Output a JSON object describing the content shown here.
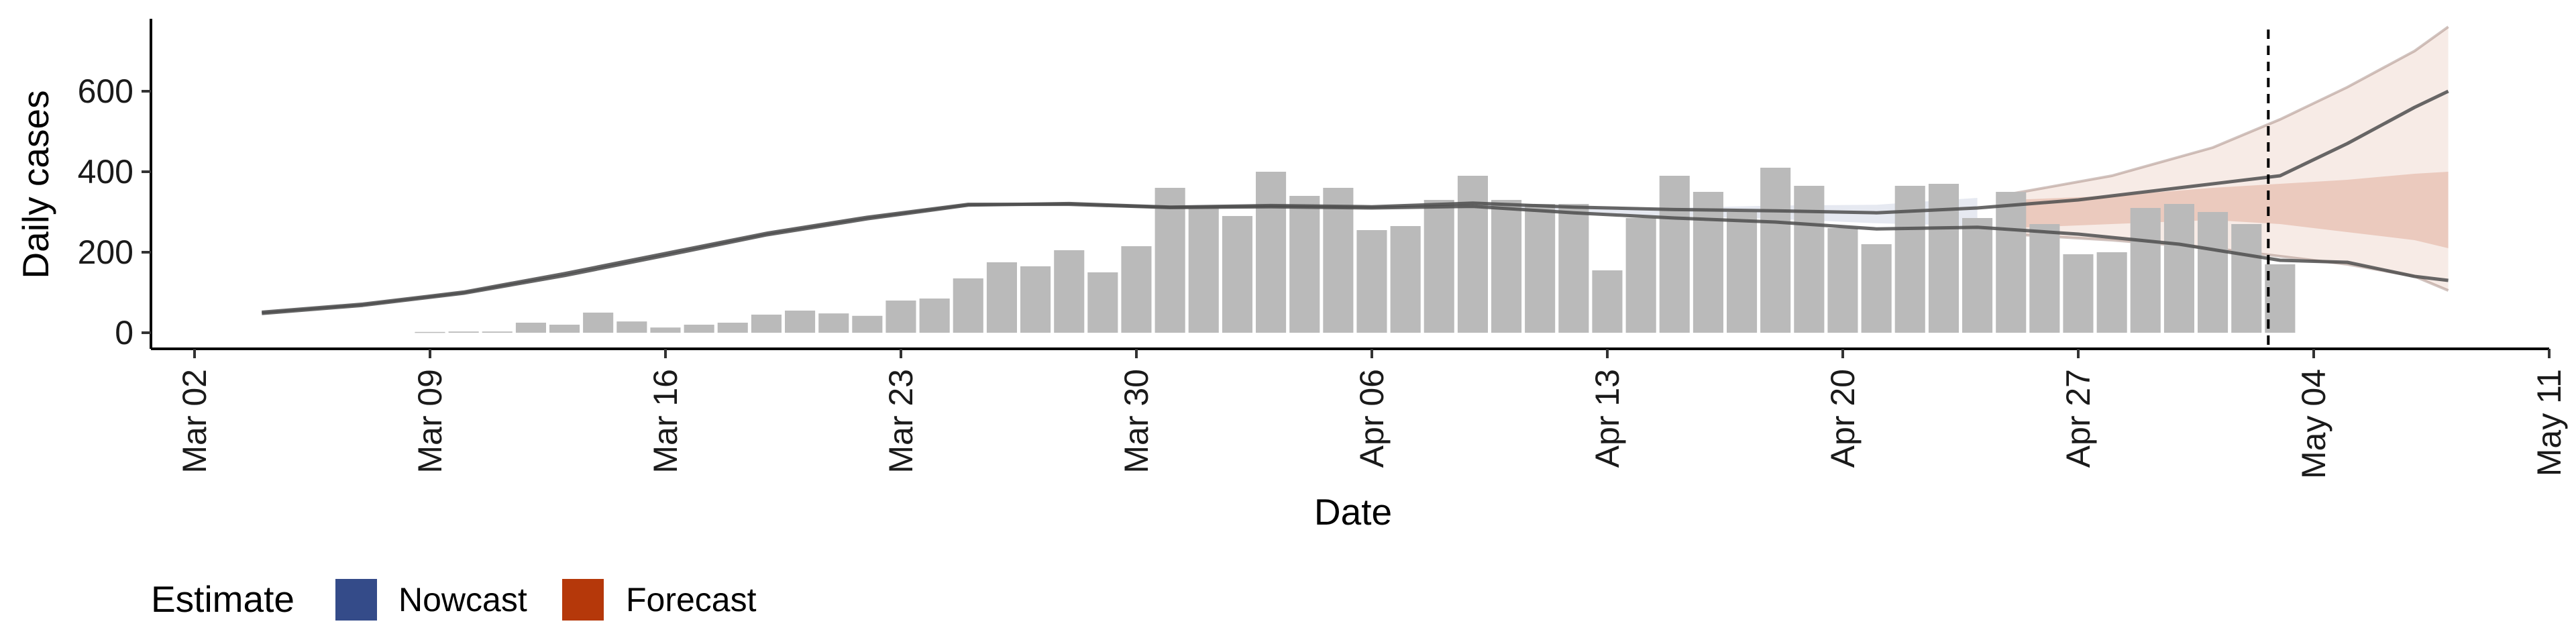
{
  "chart_data": {
    "type": "bar",
    "title": "",
    "xlabel": "Date",
    "ylabel": "Daily cases",
    "x_range": [
      "2020-03-02",
      "2020-05-11"
    ],
    "ylim": [
      -40,
      780
    ],
    "y_ticks": [
      0,
      200,
      400,
      600
    ],
    "x_ticks": [
      {
        "date": "2020-03-02",
        "label": "Mar 02"
      },
      {
        "date": "2020-03-09",
        "label": "Mar 09"
      },
      {
        "date": "2020-03-16",
        "label": "Mar 16"
      },
      {
        "date": "2020-03-23",
        "label": "Mar 23"
      },
      {
        "date": "2020-03-30",
        "label": "Mar 30"
      },
      {
        "date": "2020-04-06",
        "label": "Apr 06"
      },
      {
        "date": "2020-04-13",
        "label": "Apr 13"
      },
      {
        "date": "2020-04-20",
        "label": "Apr 20"
      },
      {
        "date": "2020-04-27",
        "label": "Apr 27"
      },
      {
        "date": "2020-05-04",
        "label": "May 04"
      },
      {
        "date": "2020-05-11",
        "label": "May 11"
      }
    ],
    "grid": false,
    "legend_position": "bottom-left",
    "legend_title": "Estimate",
    "legend": [
      {
        "name": "Nowcast",
        "color": "#344B89"
      },
      {
        "name": "Forecast",
        "color": "#B5380A"
      }
    ],
    "cutoff_date": "2020-05-03",
    "bars": {
      "color": "#BABABA",
      "dates": [
        "2020-03-09",
        "2020-03-10",
        "2020-03-11",
        "2020-03-12",
        "2020-03-13",
        "2020-03-14",
        "2020-03-15",
        "2020-03-16",
        "2020-03-17",
        "2020-03-18",
        "2020-03-19",
        "2020-03-20",
        "2020-03-21",
        "2020-03-22",
        "2020-03-23",
        "2020-03-24",
        "2020-03-25",
        "2020-03-26",
        "2020-03-27",
        "2020-03-28",
        "2020-03-29",
        "2020-03-30",
        "2020-03-31",
        "2020-04-01",
        "2020-04-02",
        "2020-04-03",
        "2020-04-04",
        "2020-04-05",
        "2020-04-06",
        "2020-04-07",
        "2020-04-08",
        "2020-04-09",
        "2020-04-10",
        "2020-04-11",
        "2020-04-12",
        "2020-04-13",
        "2020-04-14",
        "2020-04-15",
        "2020-04-16",
        "2020-04-17",
        "2020-04-18",
        "2020-04-19",
        "2020-04-20",
        "2020-04-21",
        "2020-04-22",
        "2020-04-23",
        "2020-04-24",
        "2020-04-25",
        "2020-04-26",
        "2020-04-27",
        "2020-04-28",
        "2020-04-29",
        "2020-04-30",
        "2020-05-01",
        "2020-05-02",
        "2020-05-03"
      ],
      "values": [
        2,
        3,
        3,
        25,
        20,
        50,
        28,
        13,
        20,
        25,
        45,
        55,
        48,
        42,
        80,
        85,
        135,
        175,
        165,
        205,
        150,
        215,
        360,
        310,
        290,
        400,
        340,
        360,
        255,
        265,
        330,
        390,
        330,
        320,
        320,
        155,
        285,
        390,
        350,
        300,
        410,
        365,
        260,
        220,
        365,
        370,
        285,
        350,
        270,
        195,
        200,
        310,
        320,
        300,
        270,
        170
      ]
    },
    "nowcast": {
      "color": "#344B89",
      "dates": [
        "2020-03-04",
        "2020-03-07",
        "2020-03-10",
        "2020-03-13",
        "2020-03-16",
        "2020-03-19",
        "2020-03-22",
        "2020-03-25",
        "2020-03-28",
        "2020-03-31",
        "2020-04-03",
        "2020-04-06",
        "2020-04-09",
        "2020-04-12",
        "2020-04-15",
        "2020-04-18",
        "2020-04-21",
        "2020-04-24"
      ],
      "median": [
        50,
        70,
        100,
        145,
        195,
        245,
        285,
        318,
        320,
        312,
        315,
        312,
        318,
        305,
        300,
        300,
        292,
        295
      ],
      "lower_20": [
        46,
        66,
        95,
        140,
        190,
        240,
        280,
        314,
        317,
        308,
        310,
        308,
        312,
        296,
        290,
        283,
        272,
        265
      ],
      "upper_20": [
        54,
        74,
        105,
        150,
        200,
        250,
        290,
        322,
        323,
        316,
        320,
        316,
        324,
        314,
        310,
        316,
        318,
        335
      ]
    },
    "forecast": {
      "color": "#B5380A",
      "dates": [
        "2020-04-25",
        "2020-04-28",
        "2020-05-01",
        "2020-05-03",
        "2020-05-05",
        "2020-05-07",
        "2020-05-08"
      ],
      "median": [
        290,
        300,
        310,
        320,
        330,
        340,
        345
      ],
      "lower_20": [
        260,
        270,
        280,
        270,
        250,
        230,
        210
      ],
      "upper_20": [
        330,
        340,
        360,
        370,
        380,
        395,
        400
      ],
      "lower_90": [
        245,
        230,
        210,
        190,
        170,
        140,
        105
      ],
      "upper_90": [
        345,
        390,
        460,
        530,
        610,
        700,
        760
      ]
    },
    "sample_lines": {
      "color": "#4D4D4D",
      "series": [
        {
          "dates": [
            "2020-03-04",
            "2020-03-07",
            "2020-03-10",
            "2020-03-13",
            "2020-03-16",
            "2020-03-19",
            "2020-03-22",
            "2020-03-25",
            "2020-03-28",
            "2020-03-31",
            "2020-04-03",
            "2020-04-06",
            "2020-04-09",
            "2020-04-12",
            "2020-04-15",
            "2020-04-18",
            "2020-04-21",
            "2020-04-24",
            "2020-04-27",
            "2020-04-30",
            "2020-05-03",
            "2020-05-05",
            "2020-05-07",
            "2020-05-08"
          ],
          "values": [
            48,
            68,
            98,
            142,
            192,
            243,
            283,
            317,
            321,
            312,
            316,
            313,
            322,
            312,
            306,
            303,
            298,
            310,
            330,
            360,
            390,
            470,
            560,
            600
          ]
        },
        {
          "dates": [
            "2020-03-04",
            "2020-03-07",
            "2020-03-10",
            "2020-03-13",
            "2020-03-16",
            "2020-03-19",
            "2020-03-22",
            "2020-03-25",
            "2020-03-28",
            "2020-03-31",
            "2020-04-03",
            "2020-04-06",
            "2020-04-09",
            "2020-04-12",
            "2020-04-15",
            "2020-04-18",
            "2020-04-21",
            "2020-04-24",
            "2020-04-27",
            "2020-04-30",
            "2020-05-03",
            "2020-05-05",
            "2020-05-07",
            "2020-05-08"
          ],
          "values": [
            51,
            71,
            101,
            147,
            197,
            247,
            287,
            319,
            319,
            311,
            313,
            310,
            314,
            298,
            285,
            275,
            258,
            262,
            245,
            220,
            180,
            175,
            140,
            130
          ]
        }
      ]
    }
  }
}
